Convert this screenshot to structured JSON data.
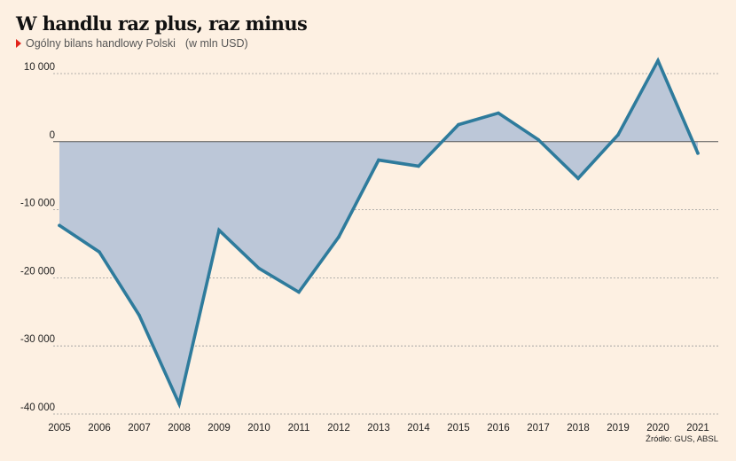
{
  "title": "W handlu raz plus, raz minus",
  "subtitle": "Ogólny bilans handlowy Polski",
  "unit": "(w mln USD)",
  "source": "Źródło: GUS, ABSL",
  "colors": {
    "line": "#2e7b9c",
    "area": "#bcc7d8",
    "marker": "#e2231a",
    "background": "#fdf0e2"
  },
  "chart_data": {
    "type": "area",
    "x": [
      "2005",
      "2006",
      "2007",
      "2008",
      "2009",
      "2010",
      "2011",
      "2012",
      "2013",
      "2014",
      "2015",
      "2016",
      "2017",
      "2018",
      "2019",
      "2020",
      "2021"
    ],
    "values": [
      -12300,
      -16200,
      -25500,
      -38500,
      -13000,
      -18600,
      -22100,
      -14000,
      -2700,
      -3600,
      2500,
      4200,
      300,
      -5400,
      1000,
      11900,
      -1700
    ],
    "ylim": [
      -40000,
      10000
    ],
    "yticks": [
      10000,
      0,
      -10000,
      -20000,
      -30000,
      -40000
    ],
    "ytick_labels": [
      "10 000",
      "0",
      "-10 000",
      "-20 000",
      "-30 000",
      "-40 000"
    ],
    "grid": true,
    "xlabel": "",
    "ylabel": ""
  }
}
